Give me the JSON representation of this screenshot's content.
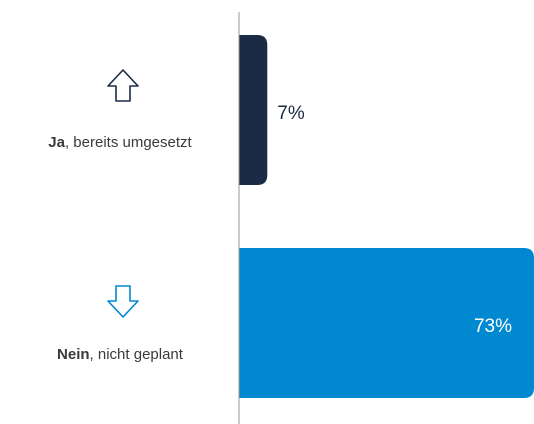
{
  "chart_data": {
    "type": "bar",
    "orientation": "horizontal",
    "categories": [
      "Ja, bereits umgesetzt",
      "Nein, nicht geplant"
    ],
    "values": [
      7,
      73
    ],
    "value_labels": [
      "7%",
      "73%"
    ],
    "colors": [
      "#1c2b45",
      "#0088d1"
    ],
    "xlim": [
      0,
      73
    ]
  }
}
